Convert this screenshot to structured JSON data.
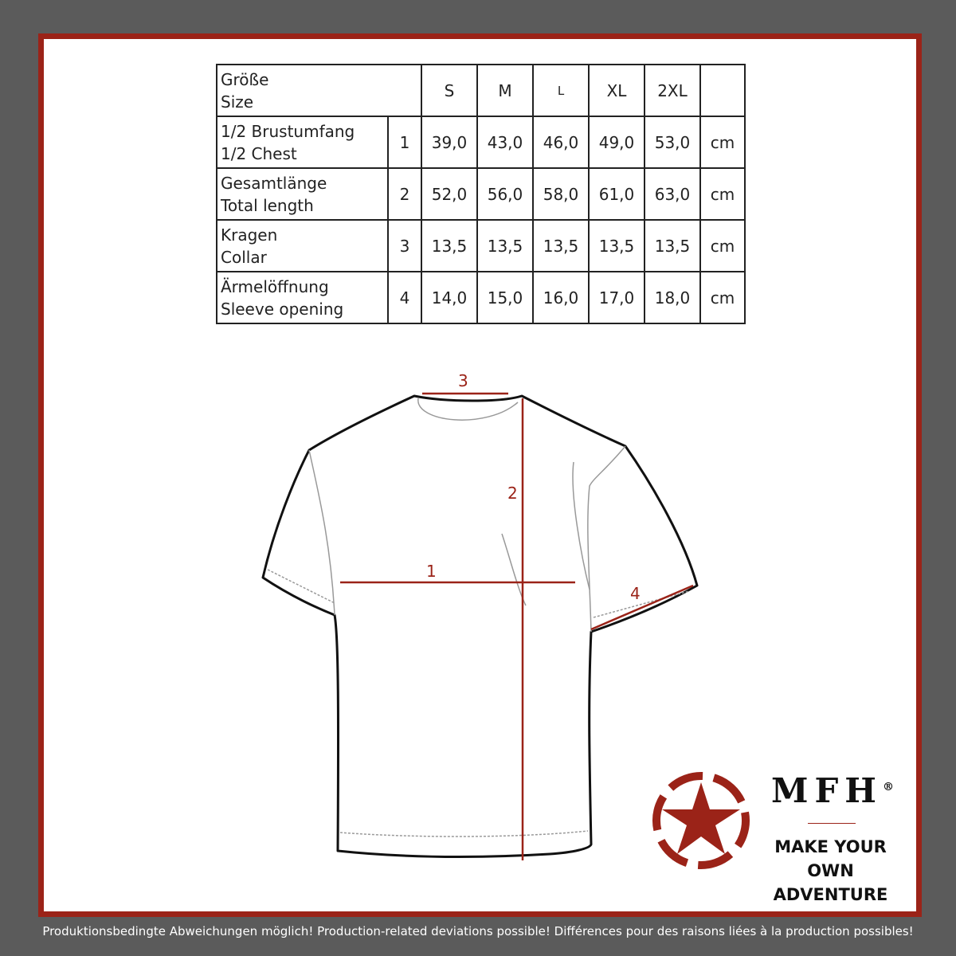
{
  "table": {
    "header": {
      "label_de": "Größe",
      "label_en": "Size",
      "sizes": [
        "S",
        "M",
        "L",
        "XL",
        "2XL"
      ]
    },
    "rows": [
      {
        "de": "1/2 Brustumfang",
        "en": "1/2 Chest",
        "num": "1",
        "values": [
          "39,0",
          "43,0",
          "46,0",
          "49,0",
          "53,0"
        ],
        "unit": "cm"
      },
      {
        "de": "Gesamtlänge",
        "en": "Total length",
        "num": "2",
        "values": [
          "52,0",
          "56,0",
          "58,0",
          "61,0",
          "63,0"
        ],
        "unit": "cm"
      },
      {
        "de": "Kragen",
        "en": "Collar",
        "num": "3",
        "values": [
          "13,5",
          "13,5",
          "13,5",
          "13,5",
          "13,5"
        ],
        "unit": "cm"
      },
      {
        "de": "Ärmelöffnung",
        "en": "Sleeve opening",
        "num": "4",
        "values": [
          "14,0",
          "15,0",
          "16,0",
          "17,0",
          "18,0"
        ],
        "unit": "cm"
      }
    ]
  },
  "diagram": {
    "labels": [
      "1",
      "2",
      "3",
      "4"
    ],
    "measure_color": "#9b2318"
  },
  "logo": {
    "brand": "MFH",
    "registered": "®",
    "slogan_line1": "MAKE YOUR OWN",
    "slogan_line2": "ADVENTURE",
    "color": "#9b2318"
  },
  "footer": "Produktionsbedingte Abweichungen möglich! Production-related deviations possible! Différences pour des raisons liées à la production possibles!"
}
